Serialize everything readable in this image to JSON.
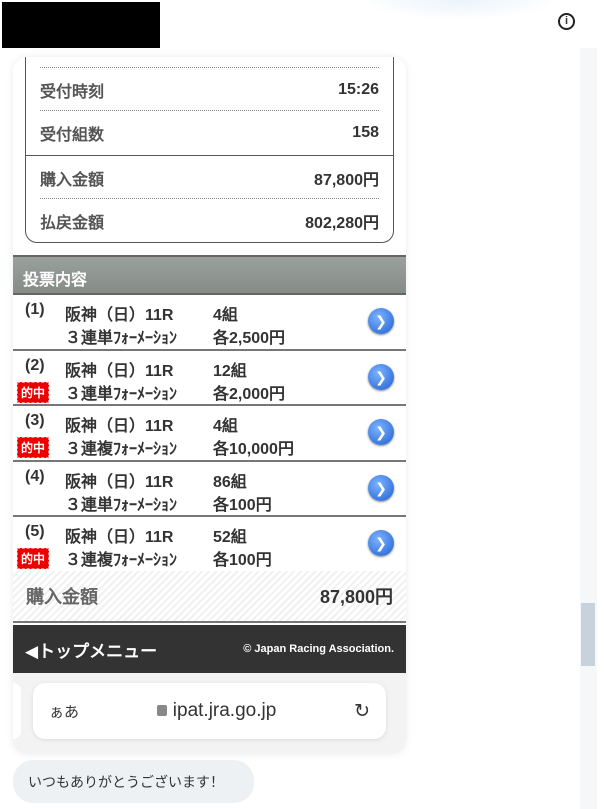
{
  "summary": {
    "rows": [
      {
        "label": "受付時刻",
        "value": "15:26"
      },
      {
        "label": "受付組数",
        "value": "158"
      },
      {
        "label": "購入金額",
        "value": "87,800円"
      },
      {
        "label": "払戻金額",
        "value": "802,280円"
      }
    ]
  },
  "section_title": "投票内容",
  "bets": [
    {
      "num": "(1)",
      "hit": "",
      "race": "阪神（日）11R",
      "type": "３連単ﾌｫｰﾒｰｼｮﾝ",
      "count": "4組",
      "amount": "各2,500円"
    },
    {
      "num": "(2)",
      "hit": "的中",
      "race": "阪神（日）11R",
      "type": "３連単ﾌｫｰﾒｰｼｮﾝ",
      "count": "12組",
      "amount": "各2,000円"
    },
    {
      "num": "(3)",
      "hit": "的中",
      "race": "阪神（日）11R",
      "type": "３連複ﾌｫｰﾒｰｼｮﾝ",
      "count": "4組",
      "amount": "各10,000円"
    },
    {
      "num": "(4)",
      "hit": "",
      "race": "阪神（日）11R",
      "type": "３連単ﾌｫｰﾒｰｼｮﾝ",
      "count": "86組",
      "amount": "各100円"
    },
    {
      "num": "(5)",
      "hit": "的中",
      "race": "阪神（日）11R",
      "type": "３連複ﾌｫｰﾒｰｼｮﾝ",
      "count": "52組",
      "amount": "各100円"
    }
  ],
  "total": {
    "label": "購入金額",
    "value": "87,800円"
  },
  "footer": {
    "menu": "◀トップメニュー",
    "copyright": "© Japan Racing Association."
  },
  "browser": {
    "aa": "ぁあ",
    "url": "ipat.jra.go.jp",
    "reload": "↻"
  },
  "chat": {
    "message": "いつもありがとうございます！"
  },
  "info_icon": "i"
}
